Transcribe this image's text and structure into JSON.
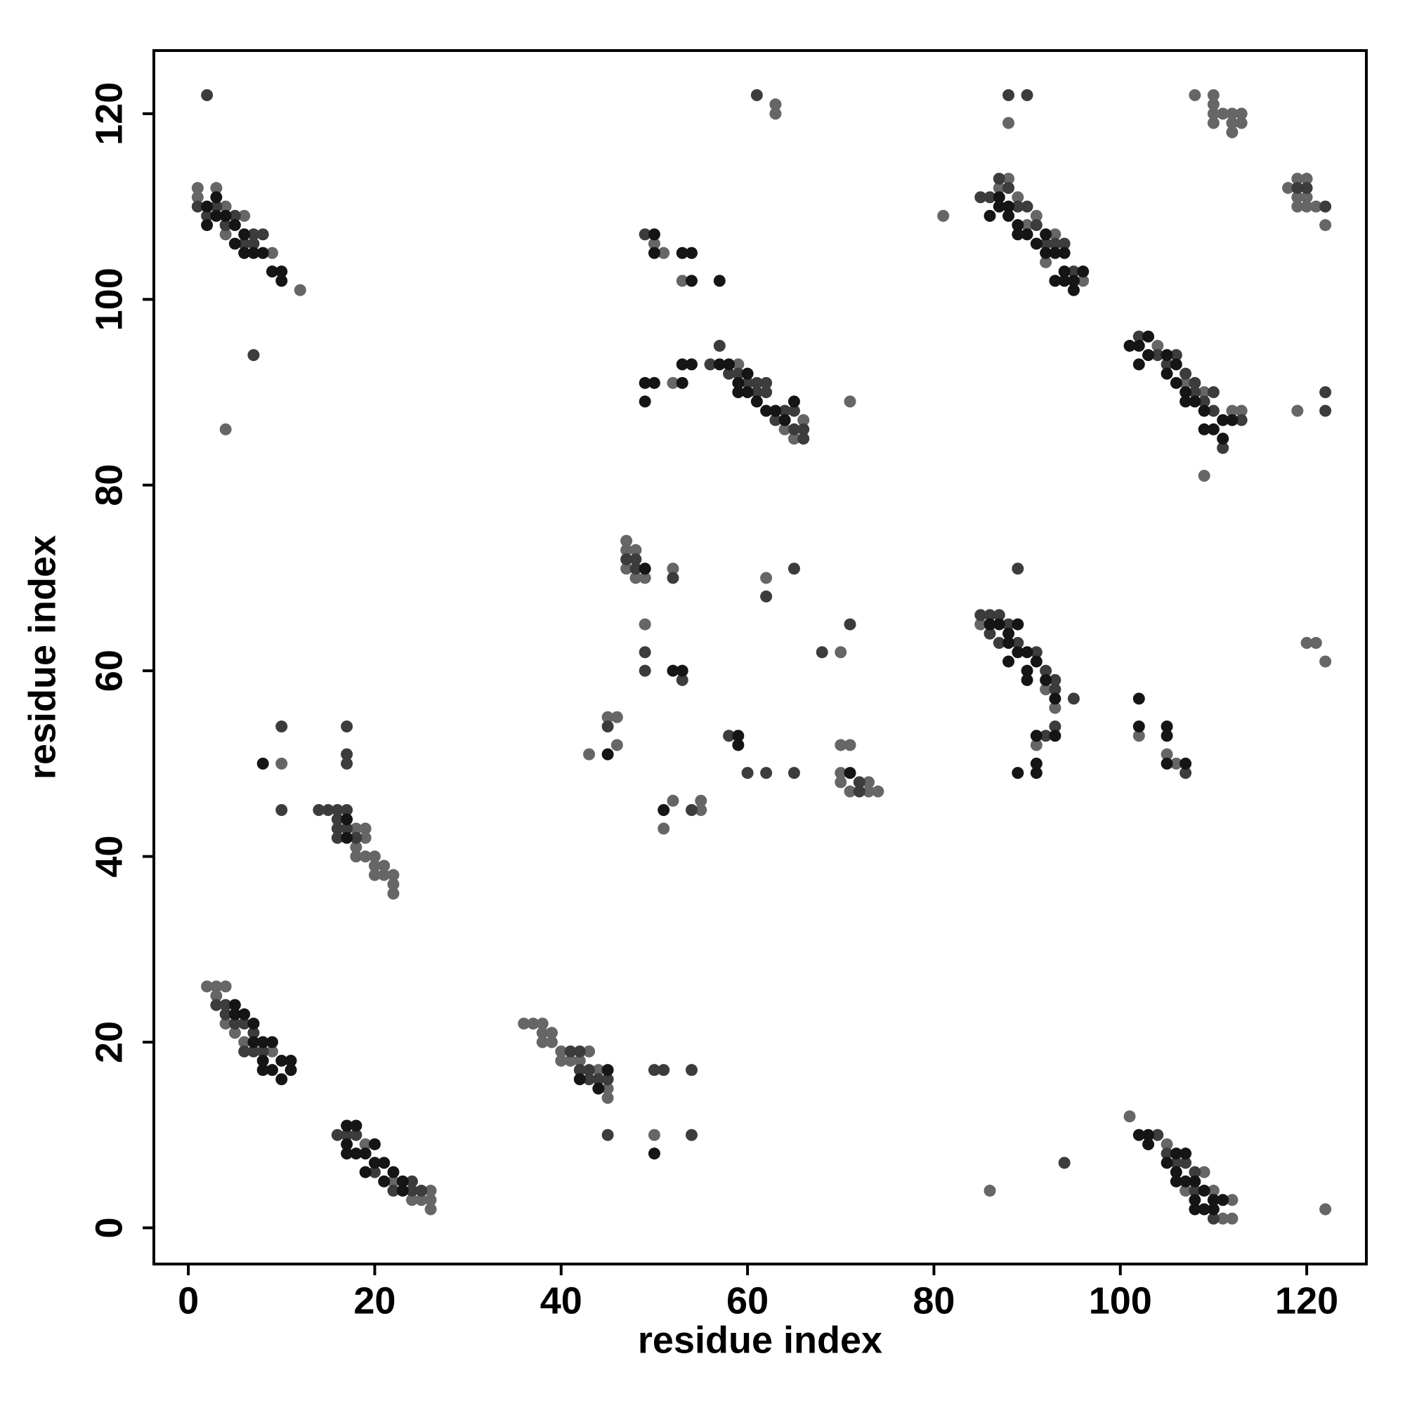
{
  "chart_data": {
    "type": "scatter",
    "x_label": "residue index",
    "y_label": "residue index",
    "xlim": [
      -3.7,
      126.4
    ],
    "ylim": [
      -3.9,
      126.8
    ],
    "xticks": [
      0,
      20,
      40,
      60,
      80,
      100,
      120
    ],
    "yticks": [
      0,
      20,
      40,
      60,
      80,
      100,
      120
    ],
    "grid": false,
    "series": [
      {
        "color": "#666666",
        "x": [
          1,
          1,
          3,
          4,
          4,
          6,
          9,
          12,
          4,
          2,
          3,
          4,
          3,
          4,
          5,
          6,
          9,
          19,
          22,
          24,
          25,
          26,
          26,
          26,
          18,
          19,
          18,
          19,
          20,
          20,
          19,
          20,
          21,
          21,
          22,
          22,
          22,
          18,
          10,
          36,
          37,
          38,
          38,
          39,
          38,
          39,
          40,
          41,
          40,
          42,
          43,
          44,
          45,
          45,
          50,
          101,
          105,
          107,
          109,
          110,
          112,
          112,
          111,
          86,
          81,
          88,
          87,
          89,
          91,
          90,
          93,
          92,
          96,
          104,
          107,
          109,
          112,
          113,
          109,
          119,
          52,
          59,
          64,
          65,
          66,
          71,
          85,
          92,
          93,
          91,
          47,
          47,
          48,
          47,
          49,
          48,
          52,
          49,
          45,
          46,
          46,
          43,
          52,
          51,
          55,
          55,
          62,
          70,
          70,
          71,
          70,
          70,
          71,
          73,
          73,
          74,
          50,
          51,
          53,
          63,
          63,
          88,
          108,
          110,
          110,
          110,
          111,
          112,
          113,
          110,
          112,
          113,
          112,
          118,
          119,
          120,
          119,
          120,
          119,
          120,
          121,
          122,
          121,
          120,
          122,
          122,
          102,
          105,
          106
        ],
        "values": [
          112,
          111,
          112,
          110,
          107,
          109,
          105,
          101,
          86,
          26,
          26,
          26,
          25,
          22,
          21,
          20,
          19,
          9,
          5,
          3,
          3,
          4,
          3,
          2,
          43,
          43,
          41,
          40,
          40,
          39,
          42,
          38,
          39,
          38,
          38,
          37,
          36,
          40,
          50,
          22,
          22,
          22,
          21,
          21,
          20,
          20,
          19,
          18,
          18,
          18,
          19,
          17,
          15,
          14,
          10,
          12,
          9,
          4,
          6,
          4,
          3,
          1,
          1,
          4,
          109,
          113,
          112,
          111,
          109,
          108,
          107,
          104,
          102,
          95,
          91,
          90,
          88,
          88,
          81,
          88,
          91,
          93,
          86,
          85,
          87,
          89,
          65,
          58,
          56,
          52,
          74,
          73,
          73,
          71,
          70,
          70,
          71,
          65,
          55,
          55,
          52,
          51,
          46,
          43,
          46,
          45,
          70,
          62,
          52,
          52,
          49,
          48,
          47,
          48,
          47,
          47,
          106,
          105,
          102,
          121,
          120,
          119,
          122,
          122,
          121,
          120,
          120,
          120,
          120,
          119,
          119,
          119,
          118,
          112,
          113,
          113,
          111,
          111,
          110,
          110,
          110,
          108,
          63,
          63,
          61,
          2,
          53,
          51,
          50
        ]
      },
      {
        "color": "#3c3c3c",
        "x": [
          1,
          2,
          3,
          4,
          5,
          6,
          7,
          8,
          7,
          7,
          2,
          3,
          4,
          4,
          5,
          6,
          7,
          7,
          8,
          6,
          16,
          18,
          20,
          22,
          24,
          24,
          25,
          17,
          14,
          15,
          16,
          16,
          17,
          16,
          17,
          16,
          18,
          10,
          10,
          17,
          17,
          17,
          41,
          42,
          42,
          43,
          44,
          45,
          43,
          45,
          50,
          51,
          54,
          54,
          104,
          105,
          106,
          107,
          108,
          110,
          108,
          94,
          85,
          86,
          87,
          88,
          89,
          90,
          91,
          92,
          93,
          94,
          95,
          102,
          104,
          105,
          106,
          107,
          108,
          108,
          109,
          110,
          110,
          111,
          113,
          122,
          122,
          56,
          57,
          58,
          59,
          60,
          61,
          62,
          63,
          64,
          65,
          65,
          66,
          66,
          62,
          61,
          85,
          86,
          87,
          86,
          87,
          88,
          89,
          91,
          92,
          93,
          93,
          95,
          89,
          92,
          93,
          47,
          48,
          48,
          52,
          49,
          49,
          53,
          45,
          58,
          60,
          62,
          65,
          54,
          62,
          65,
          68,
          71,
          72,
          72,
          49,
          61,
          88,
          90,
          122,
          120,
          119,
          107
        ],
        "values": [
          110,
          109,
          110,
          108,
          109,
          106,
          106,
          107,
          107,
          94,
          122,
          24,
          24,
          23,
          22,
          22,
          21,
          19,
          19,
          19,
          10,
          10,
          6,
          4,
          5,
          4,
          4,
          10,
          45,
          45,
          45,
          44,
          45,
          43,
          43,
          42,
          42,
          54,
          45,
          54,
          51,
          50,
          19,
          19,
          17,
          17,
          16,
          16,
          16,
          10,
          17,
          17,
          17,
          10,
          10,
          8,
          7,
          7,
          6,
          1,
          4,
          7,
          111,
          111,
          113,
          112,
          110,
          110,
          108,
          106,
          106,
          106,
          103,
          96,
          94,
          93,
          94,
          92,
          91,
          90,
          89,
          90,
          88,
          84,
          87,
          90,
          88,
          93,
          95,
          92,
          92,
          91,
          91,
          91,
          87,
          88,
          88,
          86,
          86,
          85,
          90,
          90,
          66,
          66,
          66,
          64,
          63,
          65,
          63,
          62,
          60,
          59,
          58,
          57,
          71,
          53,
          54,
          72,
          72,
          71,
          70,
          62,
          60,
          59,
          54,
          53,
          49,
          49,
          49,
          45,
          68,
          71,
          62,
          65,
          48,
          47,
          107,
          122,
          122,
          122,
          110,
          112,
          112,
          49
        ]
      },
      {
        "color": "#151515",
        "x": [
          2,
          2,
          3,
          3,
          4,
          5,
          5,
          6,
          6,
          7,
          8,
          9,
          10,
          10,
          5,
          5,
          6,
          7,
          7,
          8,
          8,
          9,
          9,
          10,
          10,
          11,
          11,
          8,
          17,
          18,
          17,
          18,
          19,
          20,
          20,
          21,
          21,
          22,
          23,
          23,
          17,
          19,
          17,
          17,
          8,
          42,
          44,
          45,
          50,
          102,
          103,
          103,
          106,
          105,
          107,
          106,
          107,
          108,
          108,
          109,
          109,
          110,
          110,
          111,
          108,
          106,
          87,
          87,
          86,
          88,
          88,
          89,
          89,
          90,
          91,
          92,
          93,
          94,
          93,
          94,
          95,
          96,
          95,
          94,
          92,
          101,
          102,
          103,
          103,
          102,
          105,
          106,
          105,
          106,
          107,
          107,
          108,
          109,
          109,
          110,
          111,
          112,
          111,
          49,
          50,
          49,
          53,
          53,
          54,
          57,
          58,
          59,
          59,
          60,
          61,
          62,
          63,
          64,
          65,
          60,
          86,
          87,
          88,
          88,
          89,
          88,
          89,
          90,
          90,
          91,
          90,
          92,
          93,
          89,
          91,
          91,
          91,
          93,
          49,
          52,
          53,
          45,
          59,
          59,
          51,
          71,
          50,
          50,
          53,
          54,
          54,
          57,
          102,
          102,
          105,
          105,
          105,
          107
        ],
        "values": [
          110,
          108,
          111,
          109,
          109,
          108,
          106,
          107,
          105,
          105,
          105,
          103,
          103,
          102,
          24,
          23,
          23,
          22,
          20,
          20,
          18,
          20,
          17,
          18,
          16,
          18,
          17,
          17,
          11,
          11,
          9,
          8,
          8,
          9,
          7,
          7,
          5,
          6,
          5,
          4,
          8,
          6,
          44,
          42,
          50,
          16,
          15,
          17,
          8,
          10,
          10,
          9,
          8,
          7,
          8,
          6,
          5,
          5,
          3,
          4,
          2,
          3,
          2,
          3,
          2,
          5,
          111,
          110,
          109,
          110,
          109,
          108,
          107,
          107,
          106,
          105,
          105,
          105,
          102,
          102,
          102,
          103,
          101,
          103,
          107,
          95,
          95,
          96,
          94,
          93,
          94,
          93,
          92,
          91,
          90,
          89,
          89,
          88,
          86,
          86,
          87,
          87,
          85,
          91,
          91,
          89,
          93,
          91,
          93,
          93,
          93,
          91,
          90,
          90,
          89,
          88,
          88,
          87,
          89,
          92,
          65,
          65,
          64,
          63,
          65,
          61,
          62,
          62,
          60,
          61,
          59,
          59,
          57,
          49,
          50,
          49,
          53,
          53,
          71,
          60,
          60,
          51,
          53,
          52,
          45,
          49,
          107,
          105,
          105,
          105,
          102,
          102,
          57,
          54,
          54,
          53,
          50,
          50
        ]
      }
    ]
  }
}
